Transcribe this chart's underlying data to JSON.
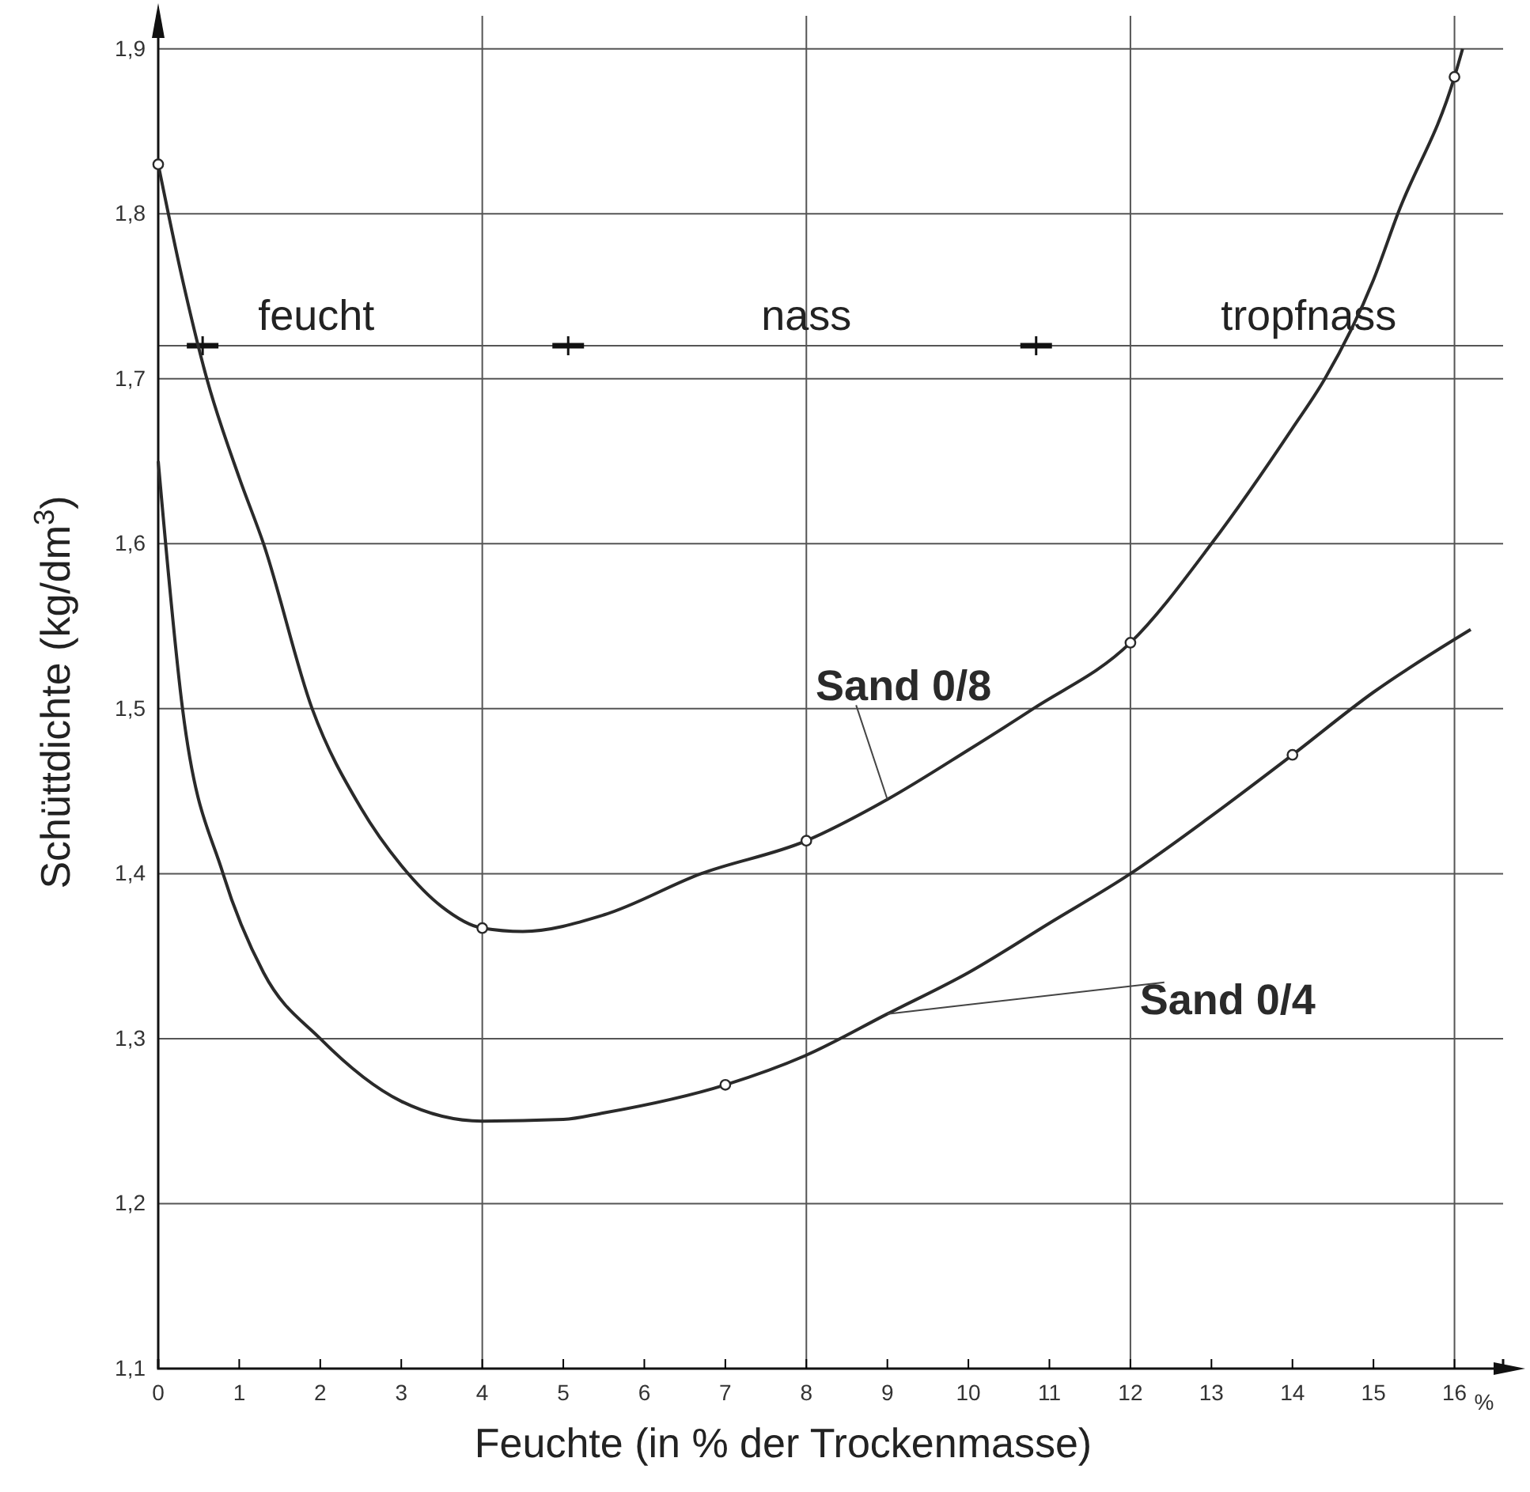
{
  "chart_data": {
    "type": "line",
    "xlabel": "Feuchte (in % der Trockenmasse)",
    "ylabel": "Schüttdichte (kg/dm$^{3}$)",
    "xlim": [
      0,
      16.6
    ],
    "ylim": [
      1.1,
      1.92
    ],
    "xticks": [
      0,
      1,
      2,
      3,
      4,
      5,
      6,
      7,
      8,
      9,
      10,
      11,
      12,
      13,
      14,
      15,
      16
    ],
    "yticks": [
      {
        "value": 1.1,
        "label": "1,1"
      },
      {
        "value": 1.2,
        "label": "1,2"
      },
      {
        "value": 1.3,
        "label": "1,3"
      },
      {
        "value": 1.4,
        "label": "1,4"
      },
      {
        "value": 1.5,
        "label": "1,5"
      },
      {
        "value": 1.6,
        "label": "1,6"
      },
      {
        "value": 1.7,
        "label": "1,7"
      },
      {
        "value": 1.8,
        "label": "1,8"
      },
      {
        "value": 1.9,
        "label": "1,9"
      }
    ],
    "grid": "y",
    "ref_lines": [
      {
        "axis": "x",
        "value": 4
      },
      {
        "axis": "x",
        "value": 8
      },
      {
        "axis": "x",
        "value": 12
      },
      {
        "axis": "x",
        "value": 16
      },
      {
        "axis": "y",
        "value": 1.72
      }
    ],
    "annotations": [
      "%",
      {
        "text": "feucht",
        "x": 1.95,
        "y": 1.72
      },
      {
        "text": "nass",
        "x": 8,
        "y": 1.72
      },
      {
        "text": "tropfnass",
        "x": 14.2,
        "y": 1.72
      }
    ],
    "series": [
      {
        "name": "Sand 0/8",
        "marker": "none",
        "color": "#2a2a2a",
        "x": [
          0,
          0.3,
          0.6,
          1,
          1.3,
          1.9,
          2.5,
          3,
          3.5,
          4,
          4.5,
          5.5,
          6.7,
          8,
          9,
          10,
          10.8,
          12,
          13,
          14,
          14.4,
          15,
          15.3,
          16,
          16.1
        ],
        "values": [
          1.83,
          1.76,
          1.7,
          1.64,
          1.6,
          1.5,
          1.44,
          1.405,
          1.38,
          1.367,
          1.365,
          1.375,
          1.4,
          1.42,
          1.445,
          1.475,
          1.5,
          1.54,
          1.6,
          1.67,
          1.7,
          1.76,
          1.8,
          1.883,
          1.9
        ]
      },
      {
        "name": "Sand 0/4",
        "marker": "none",
        "color": "#2a2a2a",
        "x": [
          0,
          0.3,
          0.8,
          1.3,
          2,
          3,
          4,
          5,
          5.5,
          7,
          8,
          9,
          10,
          11,
          12,
          13,
          14,
          15,
          16,
          16.2
        ],
        "values": [
          1.65,
          1.5,
          1.4,
          1.34,
          1.3,
          1.262,
          1.25,
          1.251,
          1.255,
          1.272,
          1.29,
          1.315,
          1.34,
          1.37,
          1.4,
          1.435,
          1.472,
          1.51,
          1.542,
          1.548
        ]
      },
      {
        "type": "scatter",
        "marker": "circle",
        "color": "#2a2a2a",
        "x": [
          0,
          4,
          8,
          12,
          16
        ],
        "values": [
          1.83,
          1.367,
          1.42,
          1.54,
          1.883
        ]
      },
      {
        "type": "scatter",
        "marker": "circle",
        "color": "#2a2a2a",
        "x": [
          7,
          14
        ],
        "values": [
          1.272,
          1.472
        ]
      }
    ]
  }
}
